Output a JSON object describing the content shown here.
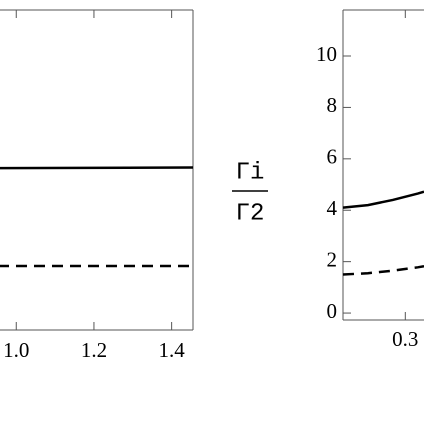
{
  "chart_data": [
    {
      "type": "line",
      "x": [
        0.953,
        1.455
      ],
      "xlim": [
        0.953,
        1.455
      ],
      "ylim": [
        -0.6,
        11.85
      ],
      "xticks": [
        {
          "value": 1.0,
          "label": "1.0"
        },
        1.2,
        1.4
      ],
      "series": [
        {
          "color": "#000000",
          "dashed": false,
          "values": [
            5.7,
            5.72
          ]
        },
        {
          "color": "#000000",
          "dashed": true,
          "values": [
            1.89,
            1.89
          ]
        }
      ]
    },
    {
      "type": "line",
      "x": [
        0.25,
        0.27,
        0.29,
        0.31,
        0.315
      ],
      "xlim": [
        0.25,
        0.315
      ],
      "ylim": [
        -0.27,
        11.79
      ],
      "xticks": [
        0.3
      ],
      "yticks": [
        0,
        2,
        4,
        6,
        8,
        10
      ],
      "ylabel": {
        "numerator": "Γi",
        "denominator": "Γ2"
      },
      "series": [
        {
          "color": "#000000",
          "dashed": false,
          "values": [
            4.1,
            4.2,
            4.4,
            4.65,
            4.72
          ]
        },
        {
          "color": "#000000",
          "dashed": true,
          "values": [
            1.5,
            1.55,
            1.65,
            1.78,
            1.82
          ]
        }
      ]
    }
  ]
}
